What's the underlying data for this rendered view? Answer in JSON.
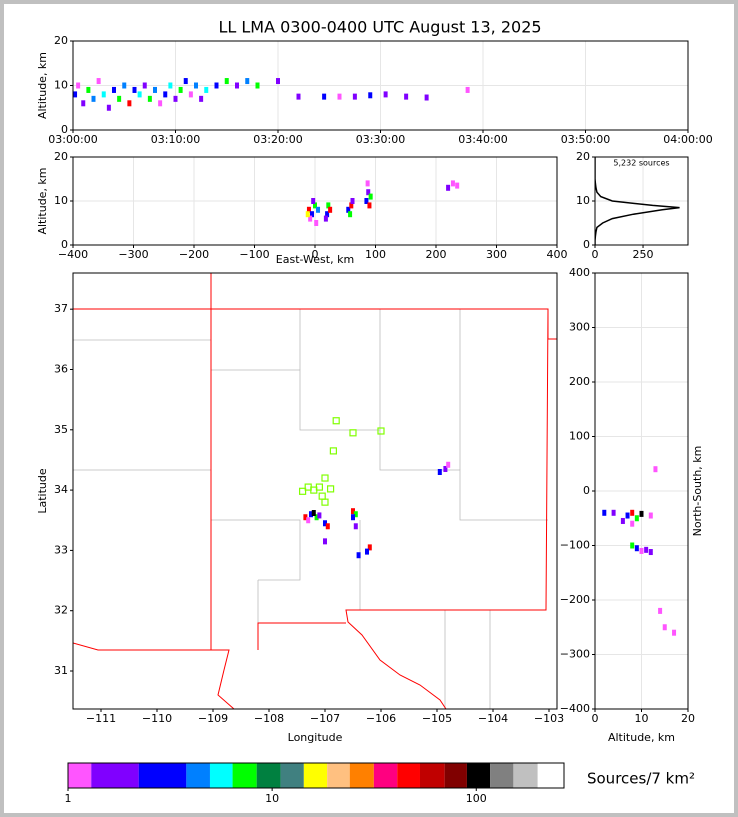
{
  "chart_data": [
    {
      "type": "scatter",
      "title": "LL LMA 0300-0400 UTC August 13, 2025",
      "y_label": "Altitude, km",
      "x": [
        0.2,
        0.5,
        1,
        1.5,
        2,
        2.5,
        3,
        3.5,
        4,
        4.5,
        5,
        5.5,
        6,
        6.5,
        7,
        7.5,
        8,
        8.5,
        9,
        9.5,
        10,
        10.5,
        11,
        11.5,
        12,
        12.5,
        13,
        14,
        15,
        16,
        17,
        18,
        20,
        22,
        24.5,
        26,
        27.5,
        29,
        30.5,
        32.5,
        34.5,
        38.5
      ],
      "y": [
        8,
        10,
        6,
        9,
        7,
        11,
        8,
        5,
        9,
        7,
        10,
        6,
        9,
        8,
        10,
        7,
        9,
        6,
        8,
        10,
        7,
        9,
        11,
        8,
        10,
        7,
        9,
        10,
        11,
        10,
        11,
        10,
        11,
        7.5,
        7.5,
        7.5,
        7.5,
        7.8,
        8,
        7.5,
        7.3,
        9
      ],
      "colors": [
        "#0000ff",
        "#ff55ff",
        "#8000ff",
        "#00ff00",
        "#0080ff",
        "#ff55ff",
        "#00ffff",
        "#8000ff",
        "#0000ff",
        "#00ff00",
        "#0080ff",
        "#ff0000",
        "#0000ff",
        "#00ffff",
        "#8000ff",
        "#00ff00",
        "#0080ff",
        "#ff55ff",
        "#0000ff",
        "#00ffff",
        "#8000ff",
        "#00ff00",
        "#0000ff",
        "#ff55ff",
        "#0080ff",
        "#8000ff",
        "#00ffff",
        "#0000ff",
        "#00ff00",
        "#8000ff",
        "#0080ff",
        "#00ff00",
        "#8000ff",
        "#8000ff",
        "#0000ff",
        "#ff55ff",
        "#8000ff",
        "#0000ff",
        "#8000ff",
        "#8000ff",
        "#8000ff",
        "#ff55ff"
      ],
      "xlim": [
        0,
        60
      ],
      "xticks": [
        {
          "value": 0,
          "label": "03:00:00"
        },
        {
          "value": 10,
          "label": "03:10:00"
        },
        {
          "value": 20,
          "label": "03:20:00"
        },
        {
          "value": 30,
          "label": "03:30:00"
        },
        {
          "value": 40,
          "label": "03:40:00"
        },
        {
          "value": 50,
          "label": "03:50:00"
        },
        {
          "value": 60,
          "label": "04:00:00"
        }
      ],
      "ylim": [
        0,
        20
      ],
      "yticks": [
        0,
        10,
        20
      ],
      "grid": true
    },
    {
      "type": "scatter",
      "x_label": "East-West, km",
      "y_label": "Altitude, km",
      "x": [
        -10,
        -5,
        0,
        -8,
        -3,
        2,
        -12,
        5,
        20,
        22,
        18,
        25,
        55,
        60,
        58,
        62,
        85,
        88,
        90,
        92,
        87,
        220,
        228,
        235
      ],
      "y": [
        8,
        7,
        9,
        6,
        10,
        5,
        7,
        8,
        7,
        9,
        6,
        8,
        8,
        9,
        7,
        10,
        10,
        12,
        9,
        11,
        14,
        13,
        14,
        13.5
      ],
      "colors": [
        "#ff0000",
        "#0000ff",
        "#00ff00",
        "#ff55ff",
        "#8000ff",
        "#ff55ff",
        "#ffff00",
        "#0080ff",
        "#0000ff",
        "#00ff00",
        "#8000ff",
        "#ff0000",
        "#0000ff",
        "#ff0000",
        "#00ff00",
        "#8000ff",
        "#0000ff",
        "#8000ff",
        "#ff0000",
        "#00ff00",
        "#ff55ff",
        "#8000ff",
        "#ff55ff",
        "#ff55ff"
      ],
      "xlim": [
        -400,
        400
      ],
      "xticks": [
        {
          "value": -400,
          "label": "−400"
        },
        {
          "value": -300,
          "label": "−300"
        },
        {
          "value": -200,
          "label": "−200"
        },
        {
          "value": -100,
          "label": "−100"
        },
        0,
        100,
        200,
        300,
        400
      ],
      "ylim": [
        0,
        20
      ],
      "yticks": [
        0,
        10,
        20
      ],
      "grid": true
    },
    {
      "type": "line",
      "annotation": "5,232 sources",
      "color": "#000000",
      "x": [
        0,
        0,
        2,
        5,
        10,
        40,
        90,
        200,
        350,
        440,
        300,
        90,
        30,
        10,
        5,
        2,
        0,
        0
      ],
      "y": [
        0,
        1,
        2,
        3,
        4,
        5,
        6,
        7,
        8,
        8.5,
        9,
        10,
        11,
        12,
        13,
        14,
        15,
        20
      ],
      "xlim": [
        0,
        484
      ],
      "xticks": [
        0,
        250
      ],
      "ylim": [
        0,
        20
      ],
      "yticks": [
        0,
        10,
        20
      ],
      "grid": true
    },
    {
      "type": "map",
      "x_label": "Longitude",
      "y_label": "Latitude",
      "x": [
        -107.35,
        -107.25,
        -107.15,
        -107.3,
        -107.2,
        -107.1,
        -107.0,
        -106.95,
        -107.0,
        -106.5,
        -106.45,
        -106.5,
        -106.45,
        -106.2,
        -106.25,
        -106.4,
        -104.85,
        -104.95,
        -104.8
      ],
      "y": [
        33.55,
        33.6,
        33.55,
        33.5,
        33.62,
        33.58,
        33.45,
        33.4,
        33.15,
        33.65,
        33.6,
        33.55,
        33.4,
        33.05,
        32.98,
        32.92,
        34.35,
        34.3,
        34.42
      ],
      "colors": [
        "#ff0000",
        "#0000ff",
        "#00ff00",
        "#ff55ff",
        "#000000",
        "#8000ff",
        "#0000ff",
        "#ff0000",
        "#8000ff",
        "#ff0000",
        "#00ff00",
        "#0000ff",
        "#8000ff",
        "#ff0000",
        "#0000ff",
        "#0000ff",
        "#8000ff",
        "#0000ff",
        "#ff55ff"
      ],
      "stations": {
        "color": "#80ff00",
        "x": [
          -106.8,
          -106.5,
          -106.0,
          -106.85,
          -107.0,
          -107.1,
          -107.3,
          -106.9,
          -107.05,
          -107.0,
          -107.4,
          -107.2
        ],
        "y": [
          35.15,
          34.95,
          34.98,
          34.65,
          34.2,
          34.05,
          34.05,
          34.02,
          33.9,
          33.8,
          33.98,
          34.0
        ]
      },
      "xlim": [
        -111.5,
        -102.857
      ],
      "xticks": [
        {
          "value": -111,
          "label": "−111"
        },
        {
          "value": -110,
          "label": "−110"
        },
        {
          "value": -109,
          "label": "−109"
        },
        {
          "value": -108,
          "label": "−108"
        },
        {
          "value": -107,
          "label": "−107"
        },
        {
          "value": -106,
          "label": "−106"
        },
        {
          "value": -105,
          "label": "−105"
        },
        {
          "value": -104,
          "label": "−104"
        },
        {
          "value": -103,
          "label": "−103"
        }
      ],
      "ylim": [
        30.37,
        37.6
      ],
      "yticks": [
        31,
        32,
        33,
        34,
        35,
        36,
        37
      ],
      "grid": false
    },
    {
      "type": "scatter",
      "x_label": "Altitude, km",
      "y_label": "North-South, km",
      "x": [
        8,
        7,
        9,
        6,
        8,
        10,
        4,
        2,
        12,
        9,
        10,
        11,
        8,
        12,
        13,
        14,
        15,
        17
      ],
      "y": [
        -40,
        -45,
        -50,
        -55,
        -60,
        -42,
        -40,
        -40,
        -45,
        -105,
        -110,
        -108,
        -100,
        -112,
        40,
        -220,
        -250,
        -260
      ],
      "colors": [
        "#ff0000",
        "#0000ff",
        "#00ff00",
        "#8000ff",
        "#ff55ff",
        "#000000",
        "#8000ff",
        "#0000ff",
        "#ff55ff",
        "#0000ff",
        "#ff55ff",
        "#8000ff",
        "#00ff00",
        "#8000ff",
        "#ff55ff",
        "#ff55ff",
        "#ff55ff",
        "#ff55ff"
      ],
      "xlim": [
        0,
        20
      ],
      "xticks": [
        0,
        10,
        20
      ],
      "ylim": [
        -400,
        400
      ],
      "yticks": [
        {
          "value": -400,
          "label": "−400"
        },
        {
          "value": -300,
          "label": "−300"
        },
        {
          "value": -200,
          "label": "−200"
        },
        {
          "value": -100,
          "label": "−100"
        },
        0,
        100,
        200,
        300,
        400
      ],
      "grid": true
    },
    {
      "type": "colorbar",
      "label": "Sources/7 km²",
      "log_scale": true,
      "bins": [
        1,
        1.3,
        2.22,
        3.8,
        4.96,
        6.4,
        8.4,
        11,
        14.3,
        18.6,
        24,
        31.5,
        41,
        53,
        70,
        90,
        117,
        152,
        200,
        269
      ],
      "colors": [
        "#ff55ff",
        "#8000ff",
        "#0000ff",
        "#0080ff",
        "#00ffff",
        "#00ff00",
        "#008040",
        "#408080",
        "#ffff00",
        "#ffc080",
        "#ff8000",
        "#ff0080",
        "#ff0000",
        "#c00000",
        "#800000",
        "#000000",
        "#808080",
        "#c0c0c0",
        "#ffffff"
      ],
      "xlim": [
        1,
        269
      ],
      "xticks": [
        1,
        10,
        100
      ]
    }
  ]
}
